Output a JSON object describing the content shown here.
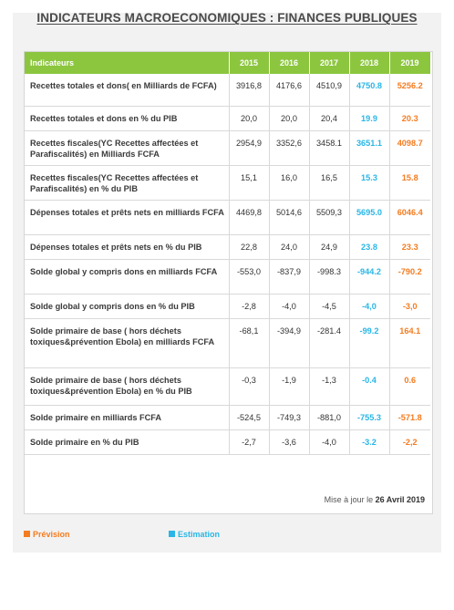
{
  "title": "INDICATEURS MACROECONOMIQUES : FINANCES PUBLIQUES",
  "colors": {
    "header_green": "#8cc63f",
    "estimation": "#29b6e6",
    "prevision": "#f47c20"
  },
  "headers": [
    "Indicateurs",
    "2015",
    "2016",
    "2017",
    "2018",
    "2019"
  ],
  "rows": [
    {
      "label": "Recettes totales et dons( en Milliards de FCFA)",
      "v": [
        "3916,8",
        "4176,6",
        "4510,9",
        "4750.8",
        "5256.2"
      ]
    },
    {
      "label": "Recettes totales et dons en % du PIB",
      "v": [
        "20,0",
        "20,0",
        "20,4",
        "19.9",
        "20.3"
      ]
    },
    {
      "label": "Recettes fiscales(YC Recettes affectées et Parafiscalités) en Milliards FCFA",
      "v": [
        "2954,9",
        "3352,6",
        "3458.1",
        "3651.1",
        "4098.7"
      ]
    },
    {
      "label": "Recettes fiscales(YC Recettes affectées et Parafiscalités) en % du PIB",
      "v": [
        "15,1",
        "16,0",
        "16,5",
        "15.3",
        "15.8"
      ]
    },
    {
      "label": "Dépenses totales et prêts nets en milliards FCFA",
      "v": [
        "4469,8",
        "5014,6",
        "5509,3",
        "5695.0",
        "6046.4"
      ]
    },
    {
      "label": "Dépenses totales et prêts nets en % du PIB",
      "v": [
        "22,8",
        "24,0",
        "24,9",
        "23.8",
        "23.3"
      ]
    },
    {
      "label": "Solde global y compris dons en milliards FCFA",
      "v": [
        "-553,0",
        "-837,9",
        "-998.3",
        "-944.2",
        "-790.2"
      ]
    },
    {
      "label": "Solde global y compris dons en % du PIB",
      "v": [
        "-2,8",
        "-4,0",
        "-4,5",
        "-4,0",
        "-3,0"
      ]
    },
    {
      "label": "Solde primaire de base ( hors déchets toxiques&prévention Ebola) en milliards FCFA",
      "v": [
        "-68,1",
        "-394,9",
        "-281.4",
        "-99.2",
        "164.1"
      ]
    },
    {
      "label": "Solde primaire de base ( hors déchets toxiques&prévention Ebola) en % du PIB",
      "v": [
        "-0,3",
        "-1,9",
        "-1,3",
        "-0.4",
        "0.6"
      ]
    },
    {
      "label": "Solde primaire en milliards FCFA",
      "v": [
        "-524,5",
        "-749,3",
        "-881,0",
        "-755.3",
        "-571.8"
      ]
    },
    {
      "label": "Solde primaire en % du PIB",
      "v": [
        "-2,7",
        "-3,6",
        "-4,0",
        "-3.2",
        "-2,2"
      ]
    }
  ],
  "update": {
    "prefix": "Mise à jour le",
    "date": "26 Avril 2019"
  },
  "legend": {
    "prevision": "Prévision",
    "estimation": "Estimation"
  }
}
